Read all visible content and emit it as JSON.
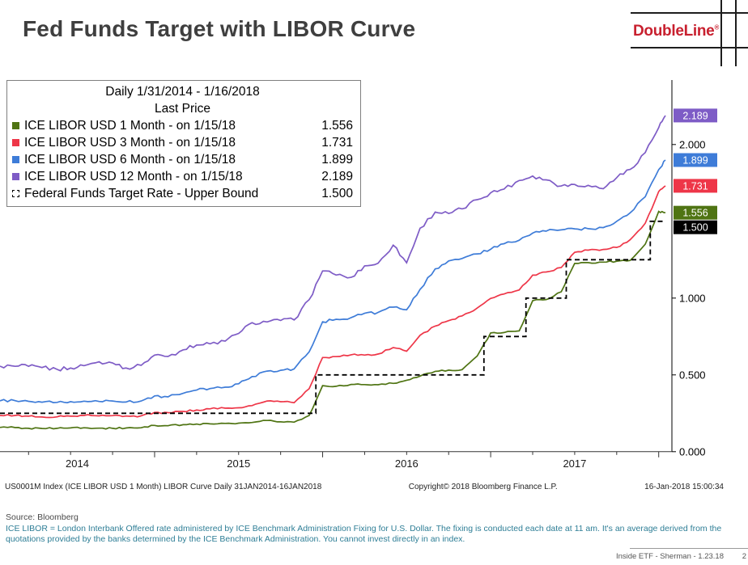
{
  "page": {
    "title": "Fed Funds Target with LIBOR Curve",
    "logo_text": "DoubleLine",
    "logo_reg": "®"
  },
  "legend": {
    "header_line1": "Daily 1/31/2014 - 1/16/2018",
    "header_line2": "Last Price",
    "entries": [
      {
        "label": "ICE LIBOR USD 1 Month -  on 1/15/18",
        "value": "1.556",
        "color": "#4f7413",
        "marker": "solid"
      },
      {
        "label": "ICE LIBOR USD 3 Month -  on 1/15/18",
        "value": "1.731",
        "color": "#ee3648",
        "marker": "solid"
      },
      {
        "label": "ICE LIBOR USD 6 Month -  on 1/15/18",
        "value": "1.899",
        "color": "#3e7cd8",
        "marker": "solid"
      },
      {
        "label": "ICE LIBOR USD 12 Month -  on 1/15/18",
        "value": "2.189",
        "color": "#7e5cc6",
        "marker": "solid"
      },
      {
        "label": "Federal Funds Target Rate - Upper Bound",
        "value": "1.500",
        "color": "#000000",
        "marker": "dashed"
      }
    ]
  },
  "chart_data": {
    "type": "line",
    "title": "Fed Funds Target with LIBOR Curve",
    "x_unit": "decimal_year",
    "x_range": [
      2014.08,
      2018.04
    ],
    "y_range": [
      0.0,
      2.42
    ],
    "grid": false,
    "legend_position": "top-left",
    "x_year_labels": [
      "2014",
      "2015",
      "2016",
      "2017"
    ],
    "x_boundaries": [
      2015,
      2016,
      2017,
      2018
    ],
    "y_ticks_plain": [
      2.0,
      1.0,
      0.5,
      0.0
    ],
    "y_badges": [
      {
        "value": 2.189,
        "label": "2.189",
        "bg": "#7e5cc6",
        "fg": "#ffffff"
      },
      {
        "value": 1.899,
        "label": "1.899",
        "bg": "#3e7cd8",
        "fg": "#ffffff"
      },
      {
        "value": 1.731,
        "label": "1.731",
        "bg": "#ee3648",
        "fg": "#ffffff"
      },
      {
        "value": 1.556,
        "label": "1.556",
        "bg": "#4f7413",
        "fg": "#ffffff"
      },
      {
        "value": 1.5,
        "label": "1.500",
        "bg": "#000000",
        "fg": "#ffffff"
      }
    ],
    "series": [
      {
        "name": "ICE LIBOR USD 12 Month",
        "color": "#7e5cc6",
        "style": "solid",
        "points": [
          [
            2014.08,
            0.557
          ],
          [
            2014.17,
            0.556
          ],
          [
            2014.25,
            0.556
          ],
          [
            2014.33,
            0.548
          ],
          [
            2014.42,
            0.536
          ],
          [
            2014.5,
            0.545
          ],
          [
            2014.58,
            0.56
          ],
          [
            2014.67,
            0.585
          ],
          [
            2014.75,
            0.578
          ],
          [
            2014.83,
            0.545
          ],
          [
            2014.92,
            0.562
          ],
          [
            2015.0,
            0.629
          ],
          [
            2015.08,
            0.62
          ],
          [
            2015.17,
            0.663
          ],
          [
            2015.25,
            0.694
          ],
          [
            2015.33,
            0.702
          ],
          [
            2015.42,
            0.72
          ],
          [
            2015.5,
            0.77
          ],
          [
            2015.58,
            0.84
          ],
          [
            2015.67,
            0.845
          ],
          [
            2015.75,
            0.854
          ],
          [
            2015.83,
            0.858
          ],
          [
            2015.92,
            0.99
          ],
          [
            2016.0,
            1.177
          ],
          [
            2016.08,
            1.15
          ],
          [
            2016.17,
            1.135
          ],
          [
            2016.25,
            1.21
          ],
          [
            2016.33,
            1.227
          ],
          [
            2016.42,
            1.345
          ],
          [
            2016.5,
            1.23
          ],
          [
            2016.58,
            1.455
          ],
          [
            2016.67,
            1.56
          ],
          [
            2016.75,
            1.551
          ],
          [
            2016.83,
            1.581
          ],
          [
            2016.92,
            1.641
          ],
          [
            2017.0,
            1.686
          ],
          [
            2017.08,
            1.71
          ],
          [
            2017.17,
            1.766
          ],
          [
            2017.25,
            1.795
          ],
          [
            2017.33,
            1.77
          ],
          [
            2017.42,
            1.73
          ],
          [
            2017.5,
            1.74
          ],
          [
            2017.58,
            1.734
          ],
          [
            2017.67,
            1.712
          ],
          [
            2017.75,
            1.784
          ],
          [
            2017.83,
            1.838
          ],
          [
            2017.92,
            1.948
          ],
          [
            2018.0,
            2.11
          ],
          [
            2018.04,
            2.189
          ]
        ]
      },
      {
        "name": "ICE LIBOR USD 6 Month",
        "color": "#3e7cd8",
        "style": "solid",
        "points": [
          [
            2014.08,
            0.331
          ],
          [
            2014.17,
            0.332
          ],
          [
            2014.25,
            0.328
          ],
          [
            2014.33,
            0.322
          ],
          [
            2014.42,
            0.321
          ],
          [
            2014.5,
            0.326
          ],
          [
            2014.58,
            0.329
          ],
          [
            2014.67,
            0.327
          ],
          [
            2014.75,
            0.33
          ],
          [
            2014.83,
            0.323
          ],
          [
            2014.92,
            0.33
          ],
          [
            2015.0,
            0.363
          ],
          [
            2015.08,
            0.357
          ],
          [
            2015.17,
            0.38
          ],
          [
            2015.25,
            0.401
          ],
          [
            2015.33,
            0.411
          ],
          [
            2015.42,
            0.42
          ],
          [
            2015.5,
            0.442
          ],
          [
            2015.58,
            0.489
          ],
          [
            2015.67,
            0.525
          ],
          [
            2015.75,
            0.53
          ],
          [
            2015.83,
            0.539
          ],
          [
            2015.92,
            0.65
          ],
          [
            2016.0,
            0.846
          ],
          [
            2016.08,
            0.862
          ],
          [
            2016.17,
            0.873
          ],
          [
            2016.25,
            0.901
          ],
          [
            2016.33,
            0.907
          ],
          [
            2016.42,
            0.941
          ],
          [
            2016.5,
            0.924
          ],
          [
            2016.58,
            1.057
          ],
          [
            2016.67,
            1.19
          ],
          [
            2016.75,
            1.242
          ],
          [
            2016.83,
            1.258
          ],
          [
            2016.92,
            1.288
          ],
          [
            2017.0,
            1.318
          ],
          [
            2017.08,
            1.354
          ],
          [
            2017.17,
            1.377
          ],
          [
            2017.25,
            1.423
          ],
          [
            2017.33,
            1.436
          ],
          [
            2017.42,
            1.444
          ],
          [
            2017.5,
            1.451
          ],
          [
            2017.58,
            1.452
          ],
          [
            2017.67,
            1.459
          ],
          [
            2017.75,
            1.5
          ],
          [
            2017.83,
            1.555
          ],
          [
            2017.92,
            1.66
          ],
          [
            2018.0,
            1.837
          ],
          [
            2018.04,
            1.899
          ]
        ]
      },
      {
        "name": "ICE LIBOR USD 3 Month",
        "color": "#ee3648",
        "style": "solid",
        "points": [
          [
            2014.08,
            0.236
          ],
          [
            2014.17,
            0.236
          ],
          [
            2014.25,
            0.231
          ],
          [
            2014.33,
            0.226
          ],
          [
            2014.42,
            0.227
          ],
          [
            2014.5,
            0.231
          ],
          [
            2014.58,
            0.236
          ],
          [
            2014.67,
            0.233
          ],
          [
            2014.75,
            0.235
          ],
          [
            2014.83,
            0.232
          ],
          [
            2014.92,
            0.233
          ],
          [
            2015.0,
            0.256
          ],
          [
            2015.08,
            0.254
          ],
          [
            2015.17,
            0.262
          ],
          [
            2015.25,
            0.271
          ],
          [
            2015.33,
            0.279
          ],
          [
            2015.42,
            0.283
          ],
          [
            2015.5,
            0.286
          ],
          [
            2015.58,
            0.3
          ],
          [
            2015.67,
            0.33
          ],
          [
            2015.75,
            0.325
          ],
          [
            2015.83,
            0.319
          ],
          [
            2015.92,
            0.41
          ],
          [
            2016.0,
            0.613
          ],
          [
            2016.08,
            0.619
          ],
          [
            2016.17,
            0.631
          ],
          [
            2016.25,
            0.629
          ],
          [
            2016.33,
            0.636
          ],
          [
            2016.42,
            0.678
          ],
          [
            2016.5,
            0.654
          ],
          [
            2016.58,
            0.758
          ],
          [
            2016.67,
            0.818
          ],
          [
            2016.75,
            0.853
          ],
          [
            2016.83,
            0.884
          ],
          [
            2016.92,
            0.935
          ],
          [
            2017.0,
            0.998
          ],
          [
            2017.08,
            1.027
          ],
          [
            2017.17,
            1.053
          ],
          [
            2017.25,
            1.15
          ],
          [
            2017.33,
            1.17
          ],
          [
            2017.42,
            1.199
          ],
          [
            2017.5,
            1.298
          ],
          [
            2017.58,
            1.312
          ],
          [
            2017.67,
            1.317
          ],
          [
            2017.75,
            1.33
          ],
          [
            2017.83,
            1.38
          ],
          [
            2017.92,
            1.488
          ],
          [
            2018.0,
            1.694
          ],
          [
            2018.04,
            1.731
          ]
        ]
      },
      {
        "name": "ICE LIBOR USD 1 Month",
        "color": "#4f7413",
        "style": "solid",
        "points": [
          [
            2014.08,
            0.158
          ],
          [
            2014.17,
            0.157
          ],
          [
            2014.25,
            0.152
          ],
          [
            2014.33,
            0.151
          ],
          [
            2014.42,
            0.152
          ],
          [
            2014.5,
            0.155
          ],
          [
            2014.58,
            0.156
          ],
          [
            2014.67,
            0.153
          ],
          [
            2014.75,
            0.152
          ],
          [
            2014.83,
            0.154
          ],
          [
            2014.92,
            0.156
          ],
          [
            2015.0,
            0.171
          ],
          [
            2015.08,
            0.169
          ],
          [
            2015.17,
            0.176
          ],
          [
            2015.25,
            0.18
          ],
          [
            2015.33,
            0.181
          ],
          [
            2015.42,
            0.184
          ],
          [
            2015.5,
            0.186
          ],
          [
            2015.58,
            0.19
          ],
          [
            2015.67,
            0.203
          ],
          [
            2015.75,
            0.194
          ],
          [
            2015.83,
            0.192
          ],
          [
            2015.92,
            0.236
          ],
          [
            2016.0,
            0.43
          ],
          [
            2016.08,
            0.426
          ],
          [
            2016.17,
            0.438
          ],
          [
            2016.25,
            0.437
          ],
          [
            2016.33,
            0.436
          ],
          [
            2016.42,
            0.445
          ],
          [
            2016.5,
            0.465
          ],
          [
            2016.58,
            0.492
          ],
          [
            2016.67,
            0.523
          ],
          [
            2016.75,
            0.531
          ],
          [
            2016.83,
            0.534
          ],
          [
            2016.92,
            0.623
          ],
          [
            2017.0,
            0.773
          ],
          [
            2017.08,
            0.776
          ],
          [
            2017.17,
            0.787
          ],
          [
            2017.25,
            0.983
          ],
          [
            2017.33,
            0.99
          ],
          [
            2017.42,
            1.041
          ],
          [
            2017.5,
            1.226
          ],
          [
            2017.58,
            1.231
          ],
          [
            2017.67,
            1.234
          ],
          [
            2017.75,
            1.24
          ],
          [
            2017.83,
            1.245
          ],
          [
            2017.92,
            1.351
          ],
          [
            2018.0,
            1.564
          ],
          [
            2018.04,
            1.556
          ]
        ]
      },
      {
        "name": "Federal Funds Target Rate - Upper Bound",
        "color": "#000000",
        "style": "dashed",
        "step": true,
        "points": [
          [
            2014.08,
            0.25
          ],
          [
            2015.96,
            0.25
          ],
          [
            2015.96,
            0.5
          ],
          [
            2016.96,
            0.5
          ],
          [
            2016.96,
            0.75
          ],
          [
            2017.21,
            0.75
          ],
          [
            2017.21,
            1.0
          ],
          [
            2017.45,
            1.0
          ],
          [
            2017.45,
            1.25
          ],
          [
            2017.95,
            1.25
          ],
          [
            2017.95,
            1.5
          ],
          [
            2018.04,
            1.5
          ]
        ]
      }
    ]
  },
  "bloomberg_footer": {
    "left": "US0001M Index (ICE LIBOR USD 1 Month) LIBOR Curve  Daily 31JAN2014-16JAN2018",
    "center": "Copyright© 2018 Bloomberg Finance L.P.",
    "right": "16-Jan-2018 15:00:34"
  },
  "notes": {
    "source": "Source: Bloomberg",
    "disclaimer": "ICE LIBOR = London Interbank Offered rate administered by ICE Benchmark Administration Fixing for U.S. Dollar. The fixing is conducted each date at 11 am. It's an average derived from the quotations provided by the banks determined by the ICE Benchmark Administration. You cannot invest directly in an index.",
    "slide_footer": "Inside ETF - Sherman - 1.23.18",
    "page_number": "2"
  }
}
